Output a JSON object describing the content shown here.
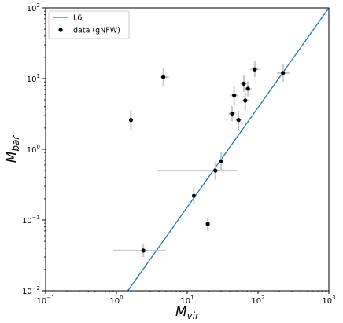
{
  "chart_data": {
    "type": "scatter",
    "title": "",
    "xlabel": {
      "base": "M",
      "sub": "vir"
    },
    "ylabel": {
      "base": "M",
      "sub": "bar"
    },
    "xscale": "log",
    "yscale": "log",
    "xlim": [
      0.1,
      1000
    ],
    "ylim": [
      0.01,
      100
    ],
    "x_ticks": [
      {
        "value": 0.1,
        "base": "10",
        "exp": "−1"
      },
      {
        "value": 1,
        "base": "10",
        "exp": "0"
      },
      {
        "value": 10,
        "base": "10",
        "exp": "1"
      },
      {
        "value": 100,
        "base": "10",
        "exp": "2"
      },
      {
        "value": 1000,
        "base": "10",
        "exp": "3"
      }
    ],
    "y_ticks": [
      {
        "value": 0.01,
        "base": "10",
        "exp": "−2"
      },
      {
        "value": 0.1,
        "base": "10",
        "exp": "−1"
      },
      {
        "value": 1,
        "base": "10",
        "exp": "0"
      },
      {
        "value": 10,
        "base": "10",
        "exp": "1"
      },
      {
        "value": 100,
        "base": "10",
        "exp": "2"
      }
    ],
    "legend": {
      "placement": "top-left",
      "entries": [
        {
          "label": "L6",
          "kind": "line"
        },
        {
          "label": "data (gNFW)",
          "kind": "marker"
        }
      ]
    },
    "line": {
      "name": "L6",
      "color": "#1f77b4",
      "points": [
        [
          1.45,
          0.01
        ],
        [
          1000,
          100
        ]
      ]
    },
    "series": [
      {
        "name": "data (gNFW)",
        "color": "#000000",
        "errorbar_color": "#c8c8c8",
        "points": [
          {
            "x": 2.4,
            "y": 0.037,
            "xerr": [
              1.5,
              2.6
            ],
            "yerr": [
              0.007,
              0.008
            ]
          },
          {
            "x": 1.6,
            "y": 2.6,
            "xerr": [
              0.1,
              0.1
            ],
            "yerr": [
              0.8,
              1.0
            ]
          },
          {
            "x": 4.6,
            "y": 10.5,
            "xerr": [
              0.4,
              0.9
            ],
            "yerr": [
              2.7,
              3.5
            ]
          },
          {
            "x": 12.4,
            "y": 0.22,
            "xerr": [
              0.7,
              0.8
            ],
            "yerr": [
              0.05,
              0.07
            ]
          },
          {
            "x": 19.5,
            "y": 0.088,
            "xerr": [
              0.8,
              0.9
            ],
            "yerr": [
              0.018,
              0.02
            ]
          },
          {
            "x": 25,
            "y": 0.5,
            "xerr": [
              21.2,
              25
            ],
            "yerr": [
              0.13,
              0.16
            ]
          },
          {
            "x": 30,
            "y": 0.68,
            "xerr": [
              2,
              2.2
            ],
            "yerr": [
              0.17,
              0.22
            ]
          },
          {
            "x": 43,
            "y": 3.2,
            "xerr": [
              5,
              5.5
            ],
            "yerr": [
              0.7,
              0.9
            ]
          },
          {
            "x": 46,
            "y": 5.8,
            "xerr": [
              6,
              7
            ],
            "yerr": [
              1.5,
              2.0
            ]
          },
          {
            "x": 53,
            "y": 2.6,
            "xerr": [
              5,
              6
            ],
            "yerr": [
              0.7,
              0.9
            ]
          },
          {
            "x": 63,
            "y": 8.5,
            "xerr": [
              7,
              8
            ],
            "yerr": [
              2,
              2.5
            ]
          },
          {
            "x": 66,
            "y": 4.9,
            "xerr": [
              7,
              8
            ],
            "yerr": [
              1.3,
              1.6
            ]
          },
          {
            "x": 72,
            "y": 7.2,
            "xerr": [
              8,
              9
            ],
            "yerr": [
              1.6,
              2.0
            ]
          },
          {
            "x": 90,
            "y": 13.5,
            "xerr": [
              12,
              14
            ],
            "yerr": [
              3,
              4
            ]
          },
          {
            "x": 225,
            "y": 12,
            "xerr": [
              40,
              60
            ],
            "yerr": [
              3,
              4
            ]
          }
        ]
      }
    ],
    "grid": false
  }
}
